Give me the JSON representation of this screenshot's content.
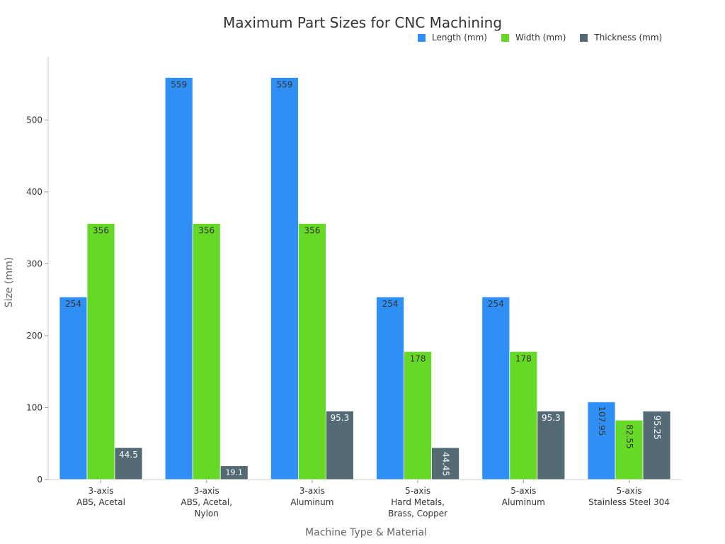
{
  "chart_data": {
    "type": "bar",
    "title": "Maximum Part Sizes for CNC Machining",
    "xlabel": "Machine Type & Material",
    "ylabel": "Size (mm)",
    "ylim": [
      0,
      588
    ],
    "yticks": [
      0,
      100,
      200,
      300,
      400,
      500
    ],
    "grid": false,
    "legend_position": "top-right",
    "categories": [
      [
        "3-axis",
        "ABS, Acetal"
      ],
      [
        "3-axis",
        "ABS, Acetal,",
        "Nylon"
      ],
      [
        "3-axis",
        "Aluminum"
      ],
      [
        "5-axis",
        "Hard Metals,",
        "Brass, Copper"
      ],
      [
        "5-axis",
        "Aluminum"
      ],
      [
        "5-axis",
        "Stainless Steel 304"
      ]
    ],
    "series": [
      {
        "name": "Length (mm)",
        "color": "#2f8ff5",
        "values": [
          254,
          559,
          559,
          254,
          254,
          107.95
        ],
        "labels": [
          "254",
          "559",
          "559",
          "254",
          "254",
          "107.95"
        ]
      },
      {
        "name": "Width (mm)",
        "color": "#66d926",
        "values": [
          356,
          356,
          356,
          178,
          178,
          82.55
        ],
        "labels": [
          "356",
          "356",
          "356",
          "178",
          "178",
          "82.55"
        ]
      },
      {
        "name": "Thickness (mm)",
        "color": "#546b75",
        "values": [
          44.5,
          19.1,
          95.3,
          44.45,
          95.3,
          95.25
        ],
        "labels": [
          "44.5",
          "19.1",
          "95.3",
          "44.45",
          "95.3",
          "95.25"
        ]
      }
    ]
  }
}
